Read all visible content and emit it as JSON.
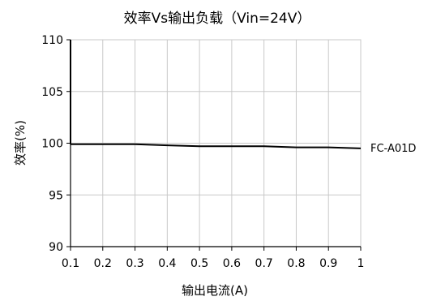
{
  "chart_data": {
    "type": "line",
    "title": "效率Vs输出负载（Vin=24V）",
    "xlabel": "输出电流(A)",
    "ylabel": "效率(%)",
    "xlim": [
      0.1,
      1.0
    ],
    "ylim": [
      90,
      110
    ],
    "x_ticks": [
      0.1,
      0.2,
      0.3,
      0.4,
      0.5,
      0.6,
      0.7,
      0.8,
      0.9,
      1
    ],
    "y_ticks": [
      90,
      95,
      100,
      105,
      110
    ],
    "grid": true,
    "legend_placement": "right (inline label at line end)",
    "series": [
      {
        "name": "FC-A01D",
        "color": "#000000",
        "x": [
          0.1,
          0.2,
          0.3,
          0.4,
          0.5,
          0.6,
          0.7,
          0.8,
          0.9,
          1.0
        ],
        "y": [
          99.9,
          99.9,
          99.9,
          99.8,
          99.7,
          99.7,
          99.7,
          99.6,
          99.6,
          99.5
        ]
      }
    ],
    "left_edge_spike": {
      "x": 0.1,
      "y_from": 99.9,
      "y_to": 110
    }
  }
}
